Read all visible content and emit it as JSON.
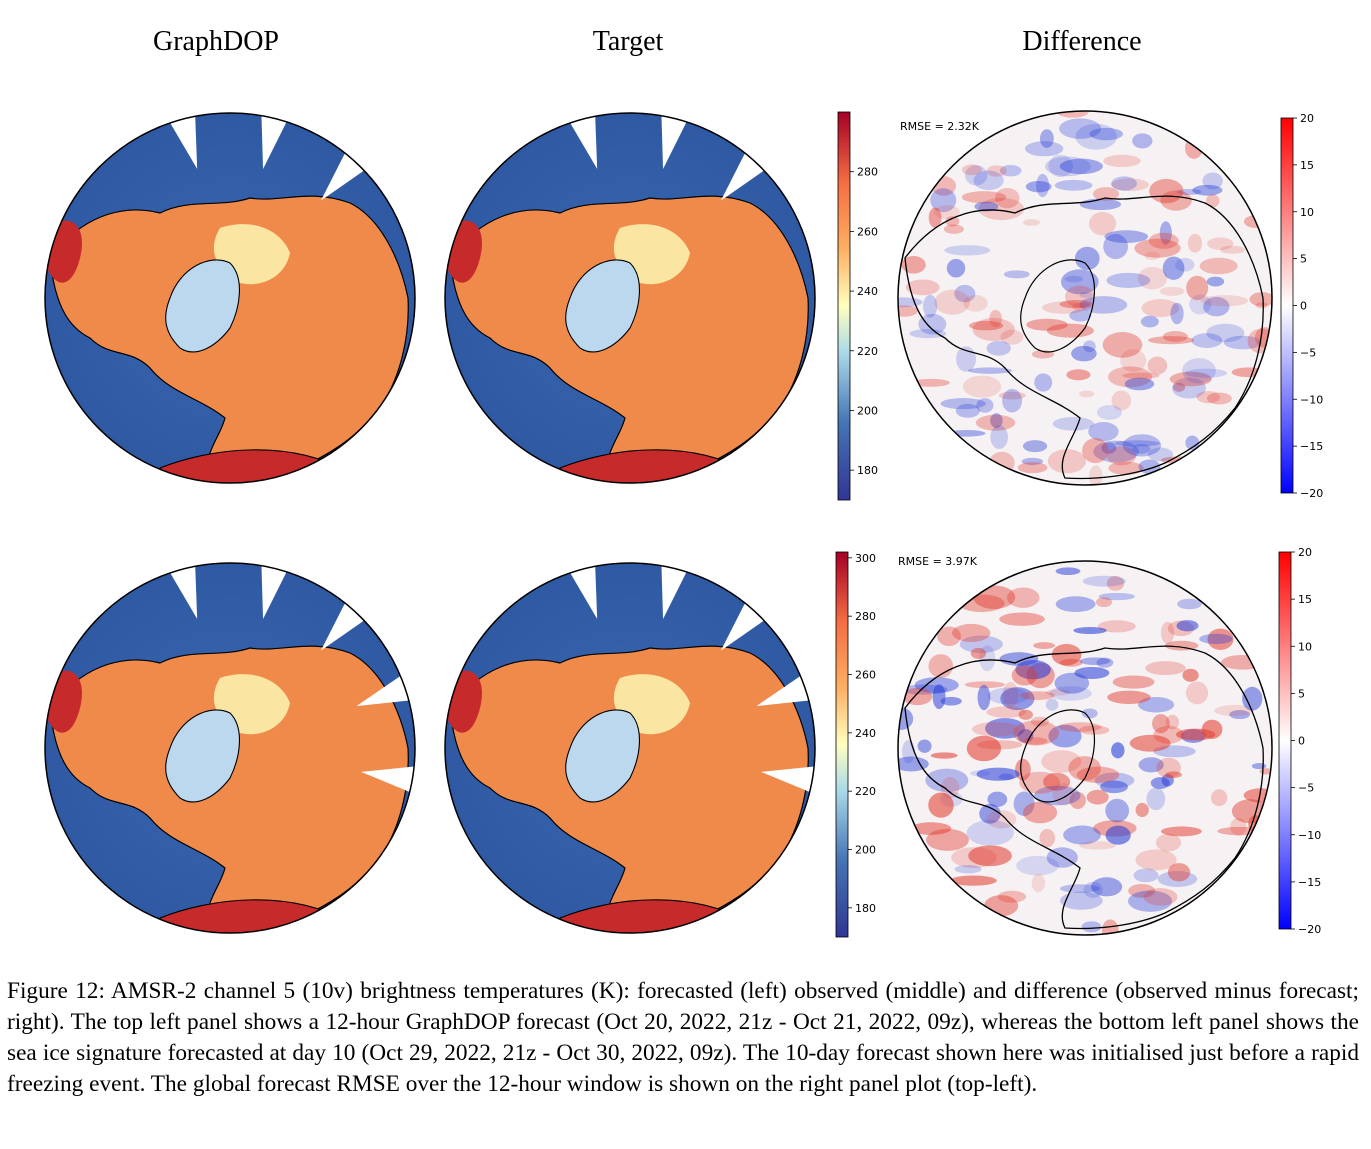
{
  "figure": {
    "column_titles": [
      "GraphDOP",
      "Target",
      "Difference"
    ],
    "rows": [
      {
        "rmse_label": "RMSE = 2.32K",
        "temp_colorbar_ticks": [
          180,
          200,
          220,
          240,
          260,
          280
        ],
        "temp_colorbar_range": [
          170,
          300
        ],
        "diff_colorbar_ticks": [
          20,
          15,
          10,
          5,
          0,
          -5,
          -10,
          -15,
          -20
        ],
        "diff_colorbar_range": [
          -20,
          20
        ]
      },
      {
        "rmse_label": "RMSE = 3.97K",
        "temp_colorbar_ticks": [
          180,
          200,
          220,
          240,
          260,
          280,
          300
        ],
        "temp_colorbar_range": [
          170,
          302
        ],
        "diff_colorbar_ticks": [
          20,
          15,
          10,
          5,
          0,
          -5,
          -10,
          -15,
          -20
        ],
        "diff_colorbar_range": [
          -20,
          20
        ]
      }
    ],
    "colors": {
      "ocean": "#3f6fb5",
      "land_warm": "#f08a4b",
      "land_hot": "#c62a2a",
      "ice": "#fbe5a2",
      "diff_pos": "#e23b2e",
      "diff_neg": "#2a3fd8"
    }
  },
  "caption": "Figure 12: AMSR-2 channel 5 (10v) brightness temperatures (K): forecasted (left) observed (middle) and difference (observed minus forecast; right). The top left panel shows a 12-hour GraphDOP forecast (Oct 20, 2022, 21z - Oct 21, 2022, 09z), whereas the bottom left panel shows the sea ice signature forecasted at day 10 (Oct 29, 2022, 21z - Oct 30, 2022, 09z). The 10-day forecast shown here was initialised just before a rapid freezing event. The global forecast RMSE over the 12-hour window is shown on the right panel plot (top-left)."
}
